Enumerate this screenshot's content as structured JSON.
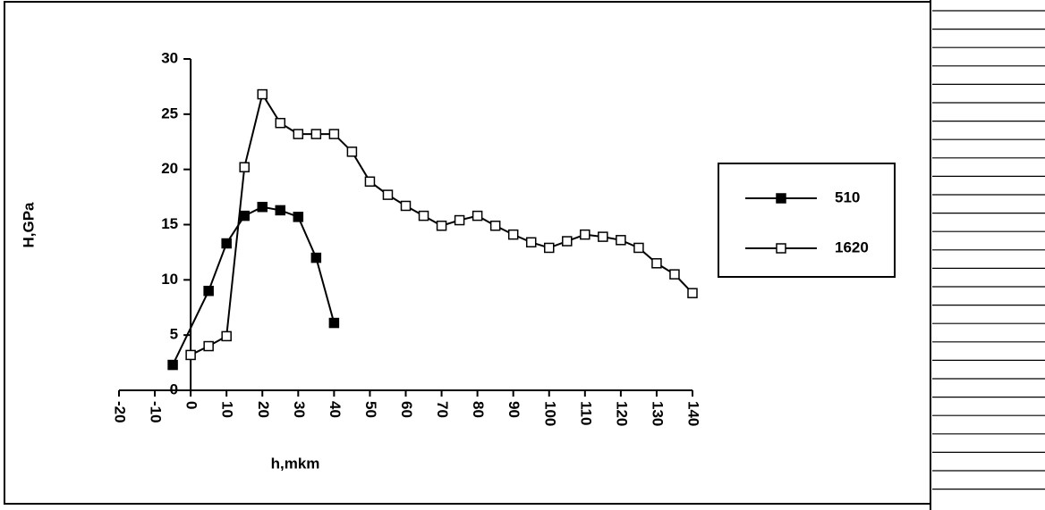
{
  "chart_data": {
    "type": "line",
    "y_label": "H,GPa",
    "x_label": "h,mkm",
    "xlim": [
      -20,
      140
    ],
    "xticks": [
      -20,
      -10,
      0,
      10,
      20,
      30,
      40,
      50,
      60,
      70,
      80,
      90,
      100,
      110,
      120,
      130,
      140
    ],
    "ylim": [
      0,
      30
    ],
    "yticks": [
      0,
      5,
      10,
      15,
      20,
      25,
      30
    ],
    "series": [
      {
        "name": "510",
        "color": "#000000",
        "marker": "square-filled",
        "x": [
          -5,
          5,
          10,
          15,
          20,
          25,
          30,
          35,
          40
        ],
        "values": [
          2.3,
          9.0,
          13.3,
          15.8,
          16.6,
          16.3,
          15.7,
          12.0,
          6.1
        ]
      },
      {
        "name": "1620",
        "color": "#000000",
        "marker": "square-open",
        "x": [
          0,
          5,
          10,
          15,
          20,
          25,
          30,
          35,
          40,
          45,
          50,
          55,
          60,
          65,
          70,
          75,
          80,
          85,
          90,
          95,
          100,
          105,
          110,
          115,
          120,
          125,
          130,
          135,
          140
        ],
        "values": [
          3.2,
          4.0,
          4.9,
          20.2,
          26.8,
          24.2,
          23.2,
          23.2,
          23.2,
          21.6,
          18.9,
          17.7,
          16.7,
          15.8,
          14.9,
          15.4,
          15.8,
          14.9,
          14.1,
          13.4,
          12.9,
          13.5,
          14.1,
          13.9,
          13.6,
          12.9,
          11.5,
          10.5,
          8.8
        ]
      }
    ]
  }
}
